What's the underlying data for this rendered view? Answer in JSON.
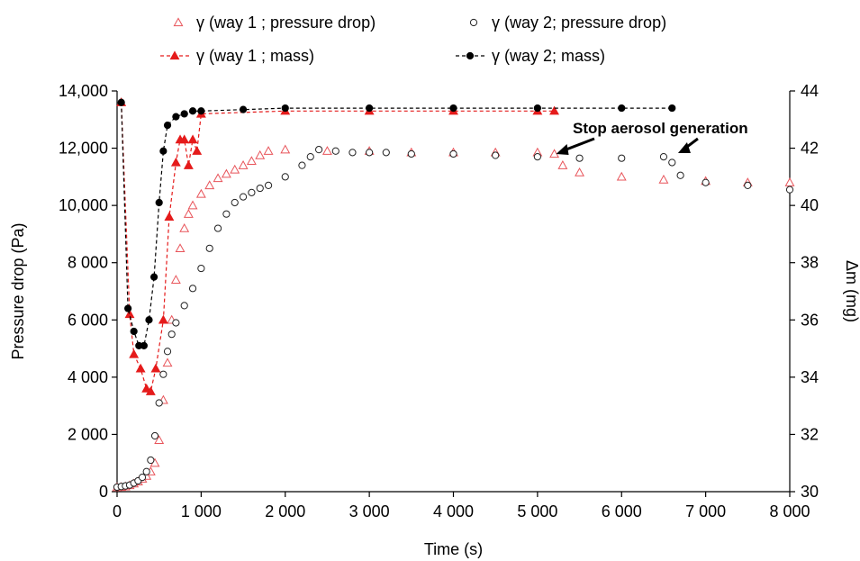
{
  "chart_data": {
    "type": "scatter",
    "title": "",
    "xlabel": "Time (s)",
    "ylabel": "Pressure drop (Pa)",
    "y2label": "Δm (mg)",
    "xlim": [
      0,
      8000
    ],
    "ylim": [
      0,
      14000
    ],
    "y2lim": [
      30,
      44
    ],
    "x_ticks": [
      0,
      1000,
      2000,
      3000,
      4000,
      5000,
      6000,
      7000,
      8000
    ],
    "x_tick_labels": [
      "0",
      "1 000",
      "2 000",
      "3 000",
      "4 000",
      "5 000",
      "6 000",
      "7 000",
      "8 000"
    ],
    "y_ticks": [
      0,
      2000,
      4000,
      6000,
      8000,
      10000,
      12000,
      14000
    ],
    "y_tick_labels": [
      "0",
      "2 000",
      "4 000",
      "6 000",
      "8 000",
      "10,000",
      "12,000",
      "14,000"
    ],
    "y2_ticks": [
      30,
      32,
      34,
      36,
      38,
      40,
      42,
      44
    ],
    "y2_tick_labels": [
      "30",
      "32",
      "34",
      "36",
      "38",
      "40",
      "42",
      "44"
    ],
    "grid": false,
    "legend_position": "top",
    "annotations": [
      {
        "text": "Stop aerosol generation",
        "points_to_x": [
          5200,
          6650
        ]
      }
    ],
    "series": [
      {
        "name": "γ (way 1 ; pressure drop)",
        "axis": "left",
        "color": "#e8545a",
        "marker": "triangle-open",
        "line": "none",
        "x": [
          0,
          50,
          100,
          150,
          200,
          250,
          300,
          350,
          400,
          450,
          500,
          550,
          600,
          650,
          700,
          750,
          800,
          850,
          900,
          1000,
          1100,
          1200,
          1300,
          1400,
          1500,
          1600,
          1700,
          1800,
          2000,
          2500,
          3000,
          3500,
          4000,
          4500,
          5000,
          5200,
          5300,
          5500,
          6000,
          6500,
          7000,
          7500,
          8000
        ],
        "y": [
          150,
          160,
          180,
          220,
          280,
          350,
          450,
          550,
          700,
          1000,
          1800,
          3200,
          4500,
          6000,
          7400,
          8500,
          9200,
          9700,
          10000,
          10400,
          10700,
          10950,
          11100,
          11250,
          11400,
          11550,
          11750,
          11900,
          11950,
          11900,
          11900,
          11850,
          11850,
          11850,
          11850,
          11800,
          11400,
          11150,
          11000,
          10900,
          10850,
          10800,
          10800
        ]
      },
      {
        "name": "γ (way 2; pressure drop)",
        "axis": "left",
        "color": "#222222",
        "marker": "circle-open",
        "line": "none",
        "x": [
          0,
          50,
          100,
          150,
          200,
          250,
          300,
          350,
          400,
          450,
          500,
          550,
          600,
          650,
          700,
          800,
          900,
          1000,
          1100,
          1200,
          1300,
          1400,
          1500,
          1600,
          1700,
          1800,
          2000,
          2200,
          2300,
          2400,
          2600,
          2800,
          3000,
          3200,
          3500,
          4000,
          4500,
          5000,
          5500,
          6000,
          6500,
          6600,
          6700,
          7000,
          7500,
          8000
        ],
        "y": [
          160,
          180,
          200,
          230,
          300,
          380,
          500,
          700,
          1100,
          1950,
          3100,
          4100,
          4900,
          5500,
          5900,
          6500,
          7100,
          7800,
          8500,
          9200,
          9700,
          10100,
          10300,
          10450,
          10600,
          10700,
          11000,
          11400,
          11700,
          11950,
          11900,
          11850,
          11850,
          11850,
          11800,
          11800,
          11750,
          11700,
          11650,
          11650,
          11700,
          11500,
          11050,
          10800,
          10700,
          10550
        ]
      },
      {
        "name": "γ (way 1 ; mass)",
        "axis": "right",
        "color": "#e51b1b",
        "marker": "triangle-filled",
        "line": "dashed",
        "x": [
          50,
          150,
          200,
          280,
          350,
          400,
          460,
          550,
          620,
          700,
          750,
          800,
          850,
          900,
          950,
          1000,
          2000,
          3000,
          4000,
          5000,
          5200
        ],
        "y": [
          43.6,
          36.2,
          34.8,
          34.3,
          33.6,
          33.5,
          34.3,
          36.0,
          39.6,
          41.5,
          42.3,
          42.3,
          41.4,
          42.3,
          41.9,
          43.2,
          43.3,
          43.3,
          43.3,
          43.3,
          43.3
        ]
      },
      {
        "name": "γ (way 2; mass)",
        "axis": "right",
        "color": "#000000",
        "marker": "circle-filled",
        "line": "dashed",
        "x": [
          50,
          130,
          200,
          260,
          320,
          380,
          440,
          500,
          550,
          600,
          700,
          800,
          900,
          1000,
          1500,
          2000,
          3000,
          4000,
          5000,
          6000,
          6600
        ],
        "y": [
          43.6,
          36.4,
          35.6,
          35.1,
          35.1,
          36.0,
          37.5,
          40.1,
          41.9,
          42.8,
          43.1,
          43.2,
          43.3,
          43.3,
          43.35,
          43.4,
          43.4,
          43.4,
          43.4,
          43.4,
          43.4
        ]
      }
    ]
  }
}
